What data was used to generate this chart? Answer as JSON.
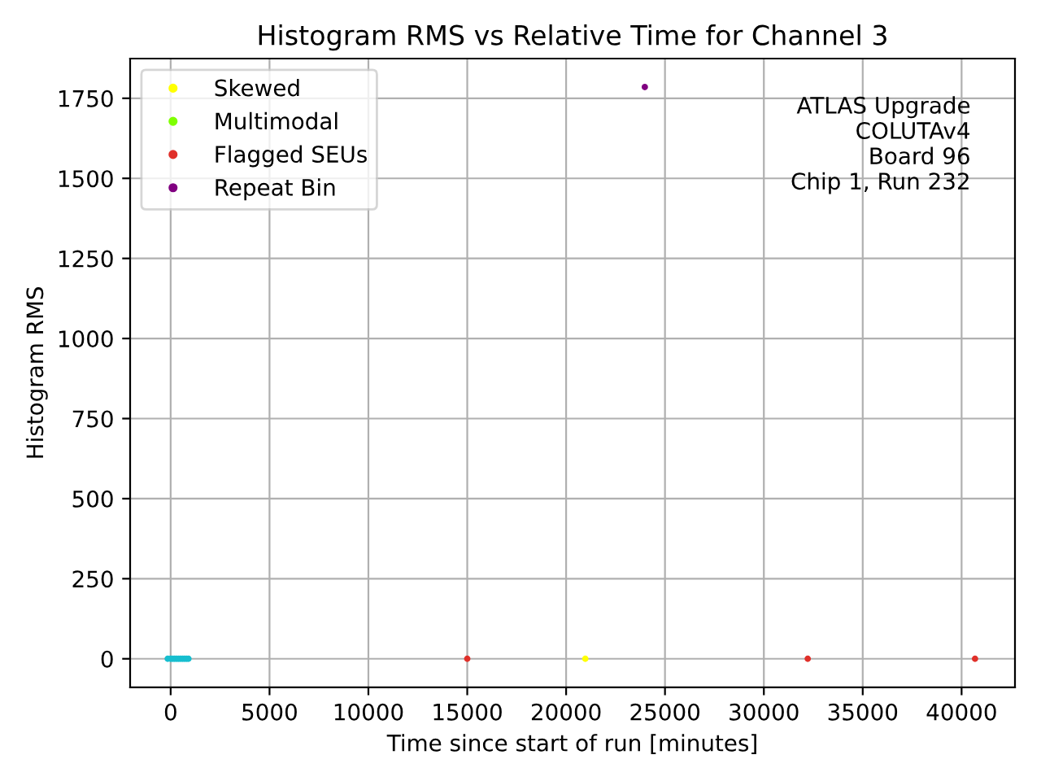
{
  "chart_data": {
    "type": "scatter",
    "title": "Histogram RMS vs Relative Time for Channel 3",
    "xlabel": "Time since start of run [minutes]",
    "ylabel": "Histogram RMS",
    "series": [
      {
        "color": "#17becf",
        "x": [
          -150,
          0,
          100,
          200,
          300,
          400,
          500,
          600,
          700,
          800,
          900
        ],
        "values": [
          0,
          0,
          0,
          0,
          0,
          0,
          0,
          0,
          0,
          0,
          0
        ]
      },
      {
        "name": "Skewed",
        "color": "#ffff00",
        "x": [
          20970
        ],
        "values": [
          0
        ]
      },
      {
        "name": "Multimodal",
        "color": "#7fff00"
      },
      {
        "name": "Flagged SEUs",
        "color": "#e0302a",
        "x": [
          15000,
          32220,
          40680
        ],
        "values": [
          0,
          0,
          0
        ]
      },
      {
        "name": "Repeat Bin",
        "color": "#800080",
        "x": [
          23980
        ],
        "values": [
          1785
        ]
      }
    ],
    "xlim": [
      -2050,
      42700
    ],
    "ylim": [
      -89,
      1874
    ],
    "xticks": [
      0,
      5000,
      10000,
      15000,
      20000,
      25000,
      30000,
      35000,
      40000
    ],
    "yticks": [
      0,
      250,
      500,
      750,
      1000,
      1250,
      1500,
      1750
    ],
    "grid": true,
    "legend": "top left",
    "marker": "circle",
    "annotations": [
      "ATLAS Upgrade\nCOLUTAv4\nBoard 96\nChip 1, Run 232"
    ]
  }
}
